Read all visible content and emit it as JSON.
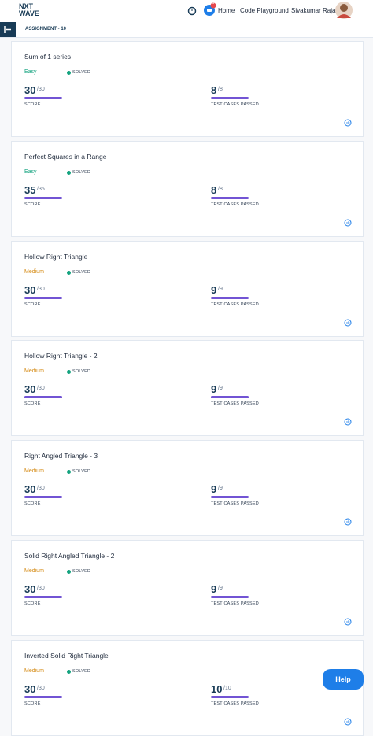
{
  "header": {
    "logo_top": "NXT",
    "logo_bottom": "WAVE",
    "notification_count": "1",
    "nav": [
      "Home",
      "Code Playground"
    ],
    "user": "Sivakumar Raja"
  },
  "breadcrumb": "ASSIGNMENT - 10",
  "labels": {
    "status": "SOLVED",
    "score": "SCORE",
    "tests": "TEST CASES PASSED"
  },
  "cards": [
    {
      "title": "Sum of 1 series",
      "difficulty": "Easy",
      "score": "30",
      "score_max": "/30",
      "tests": "8",
      "tests_max": "/8"
    },
    {
      "title": "Perfect Squares in a Range",
      "difficulty": "Easy",
      "score": "35",
      "score_max": "/35",
      "tests": "8",
      "tests_max": "/8"
    },
    {
      "title": "Hollow Right Triangle",
      "difficulty": "Medium",
      "score": "30",
      "score_max": "/30",
      "tests": "9",
      "tests_max": "/9"
    },
    {
      "title": "Hollow Right Triangle - 2",
      "difficulty": "Medium",
      "score": "30",
      "score_max": "/30",
      "tests": "9",
      "tests_max": "/9"
    },
    {
      "title": "Right Angled Triangle - 3",
      "difficulty": "Medium",
      "score": "30",
      "score_max": "/30",
      "tests": "9",
      "tests_max": "/9"
    },
    {
      "title": "Solid Right Angled Triangle - 2",
      "difficulty": "Medium",
      "score": "30",
      "score_max": "/30",
      "tests": "9",
      "tests_max": "/9"
    },
    {
      "title": "Inverted Solid Right Triangle",
      "difficulty": "Medium",
      "score": "30",
      "score_max": "/30",
      "tests": "10",
      "tests_max": "/10"
    }
  ],
  "help": "Help"
}
